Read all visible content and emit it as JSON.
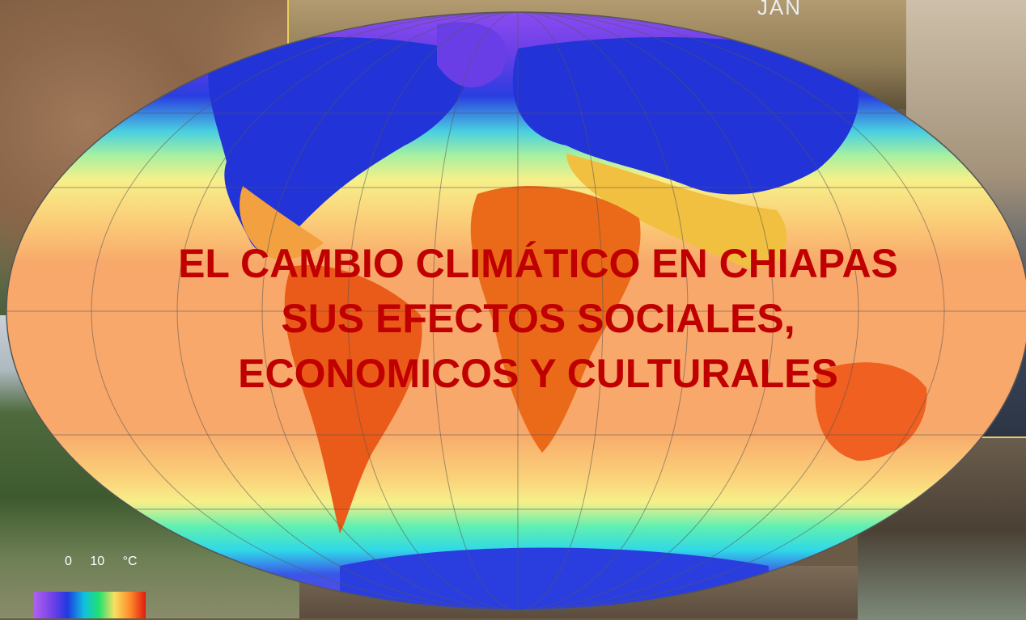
{
  "title": {
    "line1": "EL CAMBIO CLIMÁTICO EN CHIAPAS",
    "line2": "SUS EFECTOS SOCIALES,",
    "line3": "ECONOMICOS Y CULTURALES"
  },
  "corner_label": "JAN",
  "legend": {
    "ticks": [
      "0",
      "10",
      "°C"
    ]
  },
  "colors": {
    "title": "#c00000",
    "ocean_warm": "#f8a86a",
    "cold": "#2a3ee0",
    "frame_border": "#e6d060"
  }
}
